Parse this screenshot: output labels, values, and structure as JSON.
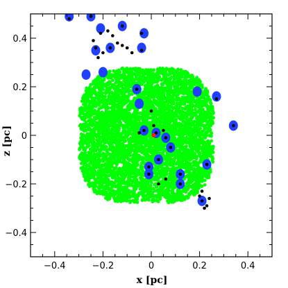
{
  "chart_data": {
    "type": "scatter",
    "title": "",
    "xlabel": "x [pc]",
    "ylabel": "z [pc]",
    "xlim": [
      -0.5,
      0.5
    ],
    "ylim": [
      -0.5,
      0.5
    ],
    "x_ticks": [
      -0.4,
      -0.2,
      0,
      0.2,
      0.4
    ],
    "y_ticks": [
      -0.4,
      -0.2,
      0,
      0.2,
      0.4
    ],
    "x_tick_labels": [
      "−0.4",
      "−0.2",
      "0",
      "0.2",
      "0.4"
    ],
    "y_tick_labels": [
      "−0.4",
      "−0.2",
      "0",
      "0.2",
      "0.4"
    ],
    "grid": false,
    "legend": "none",
    "colors": {
      "gas": "#00ff00",
      "clumps": "#2040ff",
      "stars": "#000000",
      "center": "#ff2000"
    },
    "gas_region": {
      "x_center": -0.02,
      "z_center": 0.0,
      "x_halfwidth": 0.27,
      "z_halfwidth": 0.27
    },
    "clumps": [
      {
        "x": -0.34,
        "z": 0.49
      },
      {
        "x": -0.25,
        "z": 0.49
      },
      {
        "x": -0.21,
        "z": 0.44
      },
      {
        "x": -0.12,
        "z": 0.45
      },
      {
        "x": -0.03,
        "z": 0.42
      },
      {
        "x": -0.17,
        "z": 0.36
      },
      {
        "x": -0.23,
        "z": 0.35
      },
      {
        "x": -0.04,
        "z": 0.36
      },
      {
        "x": -0.2,
        "z": 0.26
      },
      {
        "x": -0.27,
        "z": 0.25
      },
      {
        "x": -0.06,
        "z": 0.19
      },
      {
        "x": 0.19,
        "z": 0.18
      },
      {
        "x": 0.27,
        "z": 0.16
      },
      {
        "x": -0.05,
        "z": 0.13
      },
      {
        "x": 0.34,
        "z": 0.04
      },
      {
        "x": 0.02,
        "z": 0.01
      },
      {
        "x": -0.03,
        "z": 0.02
      },
      {
        "x": 0.06,
        "z": -0.01
      },
      {
        "x": 0.08,
        "z": -0.05
      },
      {
        "x": 0.03,
        "z": -0.1
      },
      {
        "x": -0.01,
        "z": -0.13
      },
      {
        "x": 0.12,
        "z": -0.16
      },
      {
        "x": 0.23,
        "z": -0.12
      },
      {
        "x": -0.01,
        "z": -0.16
      },
      {
        "x": 0.12,
        "z": -0.2
      },
      {
        "x": 0.21,
        "z": -0.27
      }
    ],
    "stars": [
      {
        "x": -0.34,
        "z": 0.48
      },
      {
        "x": -0.25,
        "z": 0.49
      },
      {
        "x": -0.21,
        "z": 0.42
      },
      {
        "x": -0.18,
        "z": 0.43
      },
      {
        "x": -0.16,
        "z": 0.41
      },
      {
        "x": -0.14,
        "z": 0.38
      },
      {
        "x": -0.12,
        "z": 0.37
      },
      {
        "x": -0.1,
        "z": 0.36
      },
      {
        "x": -0.08,
        "z": 0.34
      },
      {
        "x": -0.12,
        "z": 0.45
      },
      {
        "x": -0.04,
        "z": 0.42
      },
      {
        "x": -0.17,
        "z": 0.36
      },
      {
        "x": -0.23,
        "z": 0.36
      },
      {
        "x": -0.24,
        "z": 0.39
      },
      {
        "x": -0.2,
        "z": 0.34
      },
      {
        "x": -0.22,
        "z": 0.32
      },
      {
        "x": -0.04,
        "z": 0.35
      },
      {
        "x": -0.06,
        "z": 0.19
      },
      {
        "x": 0.27,
        "z": 0.15
      },
      {
        "x": 0.34,
        "z": 0.04
      },
      {
        "x": 0.0,
        "z": 0.1
      },
      {
        "x": 0.01,
        "z": 0.04
      },
      {
        "x": -0.03,
        "z": 0.02
      },
      {
        "x": -0.05,
        "z": 0.01
      },
      {
        "x": 0.02,
        "z": 0.01
      },
      {
        "x": 0.05,
        "z": 0.02
      },
      {
        "x": 0.06,
        "z": -0.01
      },
      {
        "x": 0.08,
        "z": -0.05
      },
      {
        "x": 0.03,
        "z": -0.1
      },
      {
        "x": -0.01,
        "z": -0.13
      },
      {
        "x": 0.12,
        "z": -0.16
      },
      {
        "x": -0.01,
        "z": -0.16
      },
      {
        "x": 0.12,
        "z": -0.2
      },
      {
        "x": 0.03,
        "z": -0.2
      },
      {
        "x": 0.23,
        "z": -0.12
      },
      {
        "x": 0.21,
        "z": -0.23
      },
      {
        "x": 0.2,
        "z": -0.25
      },
      {
        "x": 0.21,
        "z": -0.27
      },
      {
        "x": 0.23,
        "z": -0.29
      },
      {
        "x": 0.22,
        "z": -0.3
      },
      {
        "x": 0.24,
        "z": -0.26
      },
      {
        "x": 0.06,
        "z": -0.18
      }
    ],
    "center_marker": {
      "x": 0.01,
      "z": 0.0
    }
  }
}
